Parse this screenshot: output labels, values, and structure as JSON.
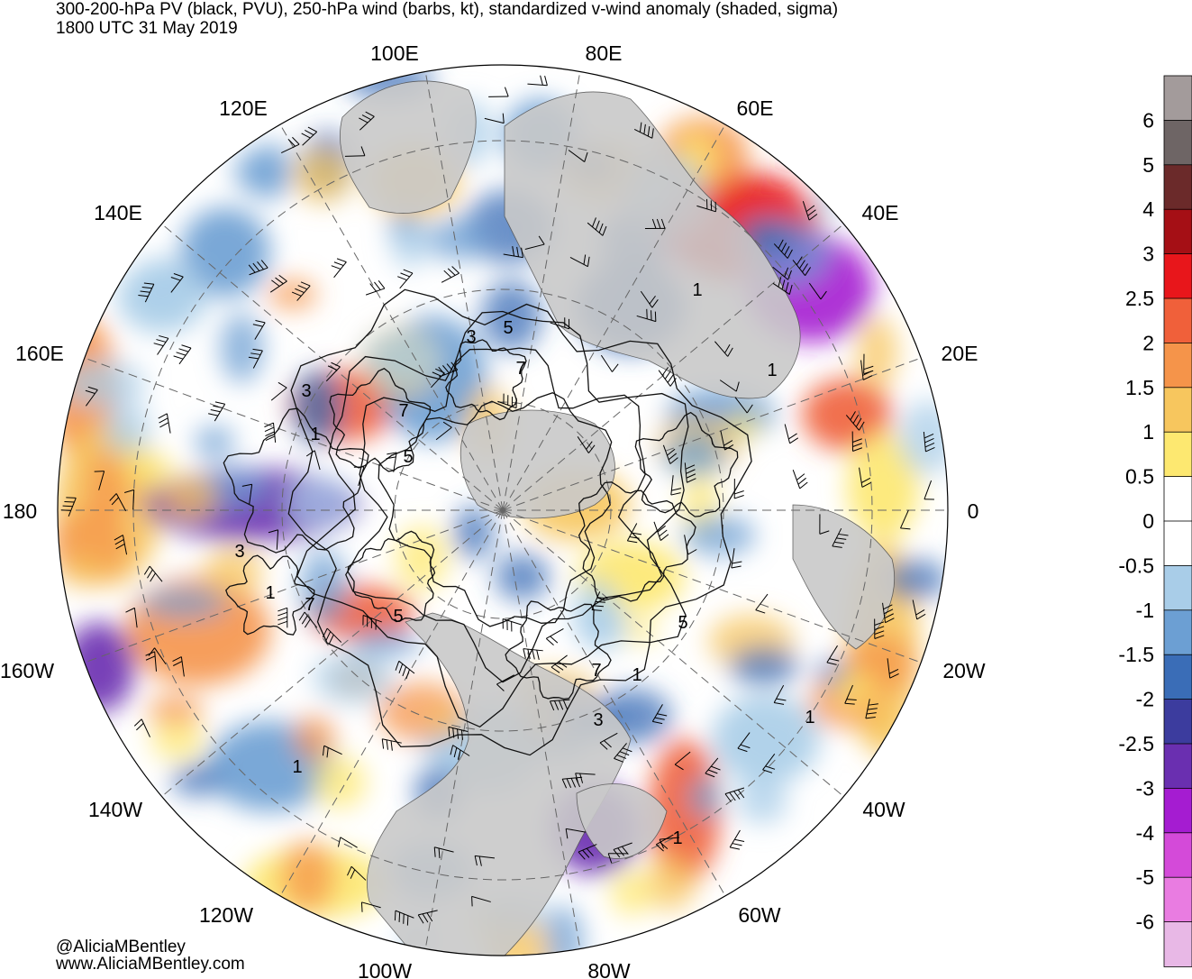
{
  "header": {
    "title": "300-200-hPa PV (black, PVU), 250-hPa wind (barbs, kt), standardized v-wind anomaly (shaded, sigma)",
    "valid_time": "1800 UTC 31 May 2019"
  },
  "map": {
    "projection": "north-polar-stereographic",
    "longitude_labels": [
      "100E",
      "80E",
      "60E",
      "40E",
      "20E",
      "0",
      "20W",
      "40W",
      "60W",
      "80W",
      "100W",
      "120W",
      "140W",
      "160W",
      "180",
      "160E",
      "140E",
      "120E"
    ],
    "contour_labels": [
      "3",
      "5",
      "7",
      "3",
      "1",
      "7",
      "5",
      "1",
      "3",
      "1",
      "7",
      "5",
      "1",
      "5",
      "7",
      "1",
      "3",
      "1",
      "1",
      "1"
    ]
  },
  "colorbar": {
    "labels": [
      "6",
      "5",
      "4",
      "3",
      "2.5",
      "2",
      "1.5",
      "1",
      "0.5",
      "0",
      "-0.5",
      "-1",
      "-1.5",
      "-2",
      "-2.5",
      "-3",
      "-4",
      "-5",
      "-6"
    ],
    "colors": [
      "#a39b9b",
      "#6e6565",
      "#6b2a2a",
      "#a50f15",
      "#e8161b",
      "#f0603a",
      "#f5944a",
      "#f7c65e",
      "#fde870",
      "#ffffff",
      "#ffffff",
      "#a9cde8",
      "#6c9fd3",
      "#3a6db7",
      "#3c3c9e",
      "#6a2fb0",
      "#a51cd1",
      "#d44ad9",
      "#e97ce1",
      "#e8b8e6"
    ]
  },
  "credits": {
    "handle": "@AliciaMBentley",
    "website": "www.AliciaMBentley.com"
  }
}
